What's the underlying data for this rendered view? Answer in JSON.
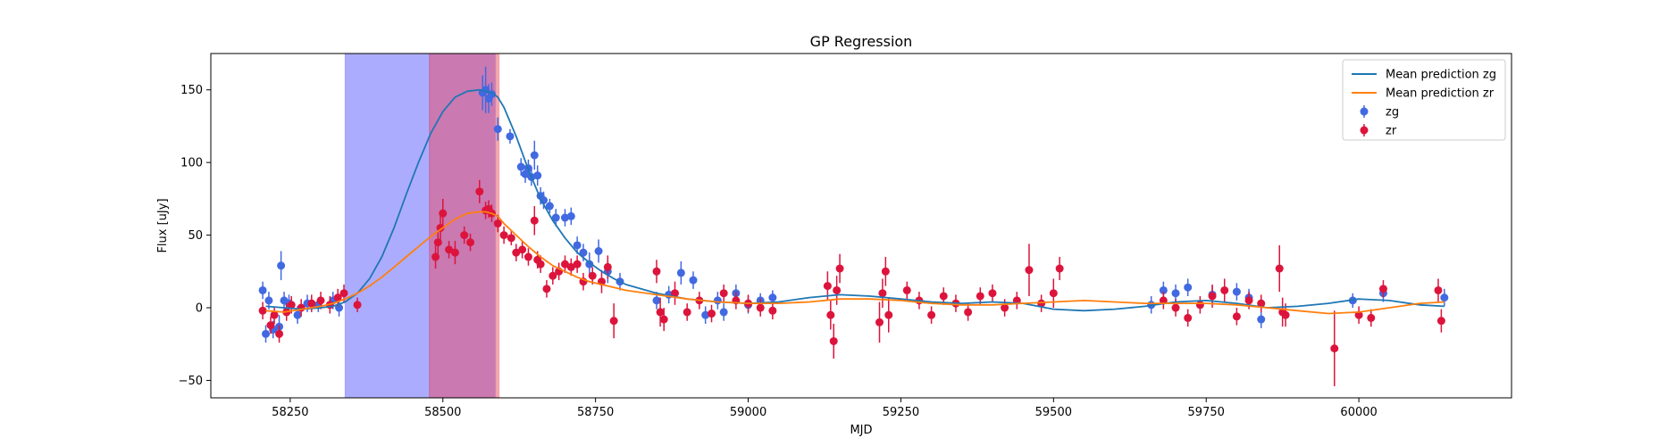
{
  "chart_data": {
    "type": "scatter",
    "title": "GP Regression",
    "xlabel": "MJD",
    "ylabel": "Flux [uJy]",
    "xlim": [
      58120,
      60250
    ],
    "ylim": [
      -62,
      175
    ],
    "xticks": [
      58250,
      58500,
      58750,
      59000,
      59250,
      59500,
      59750,
      60000
    ],
    "yticks": [
      -50,
      0,
      50,
      100,
      150
    ],
    "legend_position": "top-right",
    "bands": [
      {
        "x0": 58340,
        "x1": 58478,
        "color": "#a3a3ff"
      },
      {
        "x0": 58478,
        "x1": 58587,
        "color": "#c46aa8"
      },
      {
        "x0": 58587,
        "x1": 58592,
        "color": "#f2a0a8"
      }
    ],
    "series": [
      {
        "name": "Mean prediction zg",
        "kind": "line",
        "color": "#1f77b4",
        "x": [
          58210,
          58240,
          58270,
          58300,
          58320,
          58340,
          58360,
          58380,
          58400,
          58420,
          58440,
          58460,
          58480,
          58500,
          58520,
          58540,
          58560,
          58570,
          58580,
          58590,
          58600,
          58620,
          58640,
          58660,
          58680,
          58700,
          58720,
          58740,
          58760,
          58780,
          58800,
          58850,
          58900,
          58950,
          59000,
          59050,
          59100,
          59150,
          59200,
          59250,
          59300,
          59350,
          59400,
          59450,
          59500,
          59550,
          59600,
          59650,
          59700,
          59750,
          59800,
          59850,
          59900,
          59950,
          60000,
          60050,
          60100,
          60140
        ],
        "y": [
          1,
          0,
          -1,
          0,
          1,
          4,
          10,
          20,
          35,
          55,
          78,
          100,
          120,
          135,
          145,
          149,
          150,
          149,
          148,
          145,
          138,
          118,
          95,
          75,
          60,
          48,
          38,
          31,
          25,
          20,
          16,
          10,
          6,
          4,
          3,
          4,
          7,
          9,
          8,
          6,
          4,
          3,
          4,
          3,
          -1,
          -2,
          -1,
          1,
          4,
          5,
          3,
          0,
          1,
          3,
          6,
          5,
          2,
          1
        ]
      },
      {
        "name": "Mean prediction zr",
        "kind": "line",
        "color": "#ff7f0e",
        "x": [
          58210,
          58240,
          58270,
          58300,
          58320,
          58340,
          58360,
          58380,
          58400,
          58420,
          58440,
          58460,
          58480,
          58500,
          58520,
          58540,
          58560,
          58570,
          58580,
          58590,
          58600,
          58620,
          58640,
          58660,
          58680,
          58700,
          58720,
          58740,
          58760,
          58780,
          58800,
          58850,
          58900,
          58950,
          59000,
          59050,
          59100,
          59150,
          59200,
          59250,
          59300,
          59350,
          59400,
          59450,
          59500,
          59550,
          59600,
          59650,
          59700,
          59750,
          59800,
          59850,
          59900,
          59950,
          60000,
          60050,
          60100,
          60140
        ],
        "y": [
          -2,
          -3,
          -1,
          1,
          3,
          6,
          10,
          15,
          21,
          28,
          35,
          42,
          49,
          55,
          61,
          65,
          66,
          66,
          65,
          63,
          58,
          50,
          42,
          35,
          29,
          25,
          21,
          18,
          16,
          14,
          12,
          9,
          6,
          4,
          3,
          3,
          4,
          6,
          6,
          5,
          3,
          2,
          2,
          3,
          4,
          5,
          4,
          3,
          3,
          3,
          2,
          0,
          -2,
          -4,
          -3,
          0,
          3,
          4
        ]
      },
      {
        "name": "zg",
        "kind": "points",
        "color": "#4169e1",
        "x": [
          58205,
          58210,
          58215,
          58222,
          58232,
          58235,
          58240,
          58248,
          58262,
          58278,
          58296,
          58320,
          58330,
          58565,
          58570,
          58575,
          58580,
          58590,
          58610,
          58628,
          58635,
          58640,
          58645,
          58650,
          58655,
          58660,
          58665,
          58675,
          58685,
          58700,
          58710,
          58720,
          58730,
          58740,
          58755,
          58770,
          58790,
          58850,
          58870,
          58890,
          58910,
          58930,
          58950,
          58960,
          58980,
          59000,
          59020,
          59040,
          59660,
          59680,
          59700,
          59720,
          59760,
          59800,
          59820,
          59840,
          59990,
          60040,
          60140
        ],
        "y": [
          12,
          -18,
          5,
          -15,
          -13,
          29,
          5,
          3,
          -5,
          3,
          2,
          5,
          0,
          148,
          150,
          144,
          147,
          123,
          118,
          97,
          92,
          96,
          90,
          105,
          91,
          77,
          74,
          70,
          62,
          62,
          63,
          43,
          38,
          30,
          39,
          25,
          18,
          5,
          9,
          24,
          19,
          -5,
          5,
          -3,
          10,
          2,
          5,
          7,
          2,
          12,
          10,
          14,
          9,
          11,
          7,
          -8,
          5,
          10,
          7
        ],
        "err": [
          6,
          6,
          6,
          6,
          8,
          10,
          6,
          6,
          6,
          6,
          5,
          6,
          6,
          12,
          16,
          10,
          8,
          8,
          5,
          6,
          6,
          6,
          6,
          10,
          7,
          6,
          6,
          5,
          6,
          6,
          6,
          6,
          6,
          8,
          8,
          8,
          6,
          6,
          6,
          8,
          6,
          6,
          6,
          6,
          6,
          6,
          5,
          5,
          6,
          6,
          6,
          6,
          6,
          6,
          6,
          6,
          5,
          6,
          6
        ]
      },
      {
        "name": "zr",
        "kind": "points",
        "color": "#dc143c",
        "x": [
          58205,
          58218,
          58224,
          58232,
          58244,
          58252,
          58268,
          58285,
          58300,
          58315,
          58328,
          58338,
          58360,
          58488,
          58492,
          58496,
          58500,
          58510,
          58520,
          58535,
          58545,
          58560,
          58570,
          58575,
          58580,
          58590,
          58600,
          58612,
          58620,
          58630,
          58640,
          58650,
          58655,
          58660,
          58670,
          58680,
          58690,
          58700,
          58710,
          58720,
          58730,
          58745,
          58760,
          58770,
          58780,
          58850,
          58856,
          58862,
          58880,
          58900,
          58920,
          58940,
          58960,
          58980,
          59000,
          59020,
          59040,
          59130,
          59135,
          59140,
          59145,
          59150,
          59215,
          59220,
          59225,
          59230,
          59260,
          59280,
          59300,
          59320,
          59340,
          59360,
          59380,
          59400,
          59420,
          59440,
          59460,
          59480,
          59500,
          59510,
          59680,
          59700,
          59720,
          59740,
          59760,
          59780,
          59800,
          59820,
          59840,
          59870,
          59875,
          59880,
          59960,
          60000,
          60020,
          60040,
          60130,
          60135
        ],
        "y": [
          -2,
          -12,
          -5,
          -18,
          -3,
          2,
          0,
          3,
          5,
          2,
          7,
          10,
          2,
          35,
          45,
          55,
          65,
          40,
          38,
          50,
          45,
          80,
          67,
          68,
          65,
          58,
          50,
          48,
          38,
          40,
          35,
          60,
          33,
          30,
          13,
          22,
          25,
          30,
          28,
          30,
          18,
          22,
          18,
          28,
          -9,
          25,
          -3,
          -8,
          10,
          -3,
          5,
          -4,
          10,
          5,
          3,
          0,
          -2,
          15,
          -5,
          -23,
          12,
          27,
          -10,
          10,
          25,
          -5,
          12,
          5,
          -5,
          8,
          3,
          -3,
          8,
          10,
          0,
          5,
          26,
          3,
          10,
          27,
          5,
          0,
          -7,
          2,
          8,
          12,
          -6,
          5,
          3,
          27,
          -3,
          -5,
          -28,
          -5,
          -7,
          13,
          12,
          -9
        ],
        "err": [
          6,
          6,
          6,
          6,
          6,
          6,
          6,
          6,
          6,
          6,
          6,
          6,
          5,
          8,
          8,
          8,
          10,
          6,
          8,
          6,
          6,
          8,
          6,
          6,
          6,
          6,
          6,
          5,
          6,
          6,
          6,
          10,
          6,
          6,
          6,
          6,
          6,
          6,
          6,
          6,
          6,
          6,
          8,
          8,
          12,
          8,
          10,
          8,
          8,
          6,
          6,
          6,
          6,
          6,
          6,
          6,
          6,
          10,
          10,
          12,
          10,
          10,
          14,
          10,
          10,
          12,
          6,
          6,
          6,
          6,
          6,
          6,
          6,
          6,
          6,
          6,
          18,
          6,
          10,
          8,
          6,
          6,
          6,
          6,
          8,
          8,
          6,
          6,
          6,
          16,
          10,
          8,
          26,
          6,
          6,
          6,
          8,
          8
        ]
      }
    ]
  }
}
